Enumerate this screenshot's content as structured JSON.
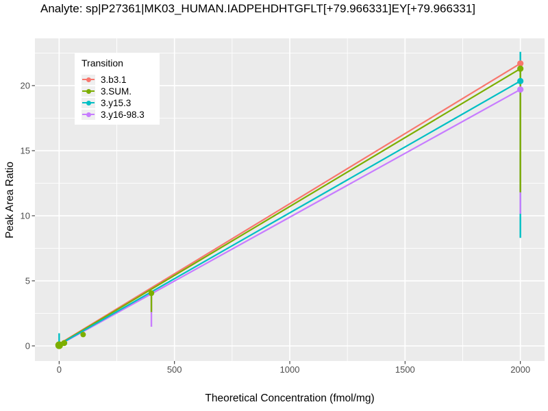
{
  "title": "Analyte: sp|P27361|MK03_HUMAN.IADPEHDHTGFLT[+79.966331]EY[+79.966331]",
  "chart_data": {
    "type": "line",
    "title": "Analyte: sp|P27361|MK03_HUMAN.IADPEHDHTGFLT[+79.966331]EY[+79.966331]",
    "xlabel": "Theoretical Concentration (fmol/mg)",
    "ylabel": "Peak Area Ratio",
    "xlim": [
      -105,
      2105
    ],
    "ylim": [
      -1.16,
      23.63
    ],
    "x_ticks": [
      0,
      500,
      1000,
      1500,
      2000
    ],
    "x_minor_ticks": [
      250,
      750,
      1250,
      1750
    ],
    "y_ticks": [
      0,
      5,
      10,
      15,
      20
    ],
    "y_minor_ticks": [
      2.5,
      7.5,
      12.5,
      17.5,
      22.5
    ],
    "grid": true,
    "panel_bg": "#EBEBEB",
    "grid_color": "#FFFFFF",
    "tick_label_color": "#4D4D4D",
    "legend_title": "Transition",
    "legend_position": "top-left-inset",
    "series": [
      {
        "name": "3.b3.1",
        "color": "#F8766D",
        "line": {
          "x": [
            0,
            2000
          ],
          "y": [
            0.15,
            21.7
          ]
        },
        "points": [
          {
            "x": 2000,
            "y": 21.7,
            "r": 4.6
          }
        ],
        "errorbars": []
      },
      {
        "name": "3.SUM.",
        "color": "#7CAE00",
        "line": {
          "x": [
            0,
            2000
          ],
          "y": [
            0.12,
            21.3
          ]
        },
        "points": [
          {
            "x": 0,
            "y": 0.05,
            "r": 5.6
          },
          {
            "x": 22,
            "y": 0.22,
            "r": 4.4
          },
          {
            "x": 104,
            "y": 0.87,
            "r": 4.0
          },
          {
            "x": 400,
            "y": 4.05,
            "r": 4.2
          },
          {
            "x": 2000,
            "y": 21.3,
            "r": 4.6
          }
        ],
        "errorbars": [
          {
            "x": 400,
            "lo": 2.6,
            "hi": 4.05
          },
          {
            "x": 2000,
            "lo": 11.8,
            "hi": 21.3
          }
        ]
      },
      {
        "name": "3.y15.3",
        "color": "#00BFC4",
        "line": {
          "x": [
            0,
            2000
          ],
          "y": [
            0.1,
            20.35
          ]
        },
        "points": [
          {
            "x": 2000,
            "y": 20.35,
            "r": 4.6
          }
        ],
        "errorbars": [
          {
            "x": 0,
            "lo": 0.0,
            "hi": 0.97
          },
          {
            "x": 2000,
            "lo": 8.3,
            "hi": 22.6
          }
        ]
      },
      {
        "name": "3.y16-98.3",
        "color": "#C77CFF",
        "line": {
          "x": [
            0,
            2000
          ],
          "y": [
            0.08,
            19.7
          ]
        },
        "points": [
          {
            "x": 2000,
            "y": 19.7,
            "r": 4.6
          }
        ],
        "errorbars": [
          {
            "x": 400,
            "lo": 1.47,
            "hi": 3.95
          },
          {
            "x": 2000,
            "lo": 10.15,
            "hi": 19.7
          }
        ]
      }
    ]
  }
}
